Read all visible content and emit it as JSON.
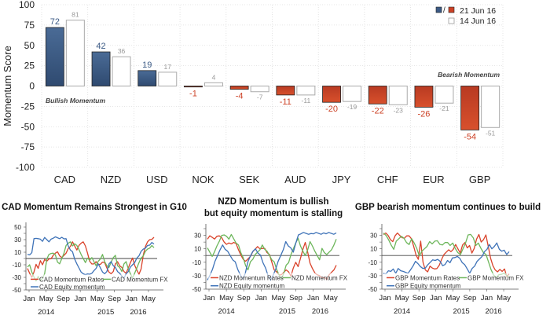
{
  "chart_data": [
    {
      "type": "bar",
      "ylabel": "Momentum Score",
      "ylim": [
        -100,
        100
      ],
      "yticks": [
        100,
        75,
        50,
        25,
        0,
        -25,
        -50,
        -75,
        -100
      ],
      "grid": true,
      "categories": [
        "CAD",
        "NZD",
        "USD",
        "NOK",
        "SEK",
        "AUD",
        "JPY",
        "CHF",
        "EUR",
        "GBP"
      ],
      "series": [
        {
          "name": "21 Jun 16",
          "values": [
            72,
            42,
            19,
            -1,
            -4,
            -11,
            -20,
            -22,
            -26,
            -54
          ],
          "positive_color": "#3b5a85",
          "negative_color": "#cc4125"
        },
        {
          "name": "14 Jun 16",
          "values": [
            81,
            36,
            17,
            4,
            -7,
            -11,
            -19,
            -23,
            -21,
            -51
          ],
          "color": "#ffffff",
          "stroke": "#aaaaaa"
        }
      ],
      "legend": {
        "position": "top-right",
        "entries": [
          "21 Jun 16",
          "14 Jun 16"
        ],
        "separator": "/"
      },
      "annotations": [
        "Bullish Momentum",
        "Bearish Momentum"
      ],
      "label_colors": {
        "positive": "#3b5a85",
        "negative": "#cc4125",
        "previous": "#999999"
      }
    },
    {
      "type": "line",
      "title": "CAD Momentum Remains Strongest in G10",
      "ylim": [
        -50,
        50
      ],
      "yticks": [
        50,
        30,
        10,
        -10,
        -30,
        -50
      ],
      "xticks": [
        "Jan",
        "May",
        "Sep",
        "Jan",
        "May",
        "Sep",
        "Jan",
        "May"
      ],
      "years": [
        "2014",
        "2015",
        "2016"
      ],
      "legend": [
        "CAD Momentum Rates",
        "CAD Momentum FX",
        "CAD Equity momentum"
      ],
      "series": [
        {
          "name": "CAD Momentum Rates",
          "color": "#d9432b",
          "values": [
            -15,
            -25,
            -30,
            -20,
            -10,
            -15,
            -5,
            -10,
            0,
            -5,
            0,
            -2,
            5,
            10,
            10,
            5,
            0,
            5,
            10,
            15,
            20,
            25,
            20,
            15,
            20,
            25,
            25,
            20,
            10,
            -5,
            -8,
            -10,
            -5,
            -8,
            -10,
            -5,
            -8,
            -15,
            -20,
            -25,
            -20,
            -10,
            -5,
            -10,
            -15,
            -20,
            -25,
            -15,
            -5,
            0,
            -10,
            -20,
            -25,
            -15,
            5,
            20,
            25,
            30,
            32,
            33
          ]
        },
        {
          "name": "CAD Momentum FX",
          "color": "#6db65b",
          "values": [
            -15,
            -10,
            -20,
            -30,
            -35,
            -30,
            -35,
            -30,
            -25,
            0,
            5,
            8,
            10,
            5,
            -5,
            -10,
            0,
            10,
            20,
            25,
            25,
            20,
            25,
            20,
            15,
            5,
            0,
            -5,
            0,
            -2,
            0,
            -5,
            -10,
            -5,
            0,
            5,
            -5,
            -10,
            -15,
            -5,
            0,
            5,
            -10,
            -15,
            -20,
            -10,
            -5,
            -15,
            -25,
            -30,
            -25,
            -15,
            -5,
            0,
            5,
            10,
            15,
            18,
            20,
            18
          ]
        },
        {
          "name": "CAD Equity momentum",
          "color": "#3f73b8",
          "values": [
            8,
            5,
            10,
            30,
            32,
            33,
            30,
            28,
            32,
            30,
            28,
            30,
            33,
            33,
            33,
            33,
            33,
            32,
            30,
            20,
            15,
            10,
            0,
            -10,
            -15,
            -20,
            -25,
            -25,
            -26,
            -25,
            -22,
            -20,
            -15,
            -10,
            -15,
            -20,
            -25,
            -20,
            -10,
            -5,
            -10,
            -15,
            -20,
            -25,
            -28,
            -30,
            -25,
            -20,
            -15,
            -10,
            -5,
            0,
            5,
            10,
            15,
            18,
            20,
            22,
            24,
            23
          ]
        }
      ]
    },
    {
      "type": "line",
      "title": "NZD Momentum is bullish but equity momentum is stalling",
      "ylim": [
        -50,
        40
      ],
      "yticks": [
        30,
        10,
        -10,
        -30,
        -50
      ],
      "xticks": [
        "Jan",
        "May",
        "Sep",
        "Jan",
        "May",
        "Sep",
        "Jan",
        "May"
      ],
      "years": [
        "2014",
        "2015",
        "2016"
      ],
      "legend": [
        "NZD Momentum Rates",
        "NZD Momentum FX",
        "NZD Equity momentum"
      ],
      "series": [
        {
          "name": "NZD Momentum Rates",
          "color": "#d9432b",
          "values": [
            25,
            28,
            27,
            26,
            28,
            30,
            25,
            20,
            18,
            18,
            18,
            18,
            18,
            10,
            0,
            -5,
            -10,
            -5,
            0,
            5,
            10,
            12,
            10,
            12,
            10,
            5,
            0,
            -10,
            -20,
            -25,
            -28,
            -30,
            -25,
            -20,
            -25,
            -30,
            -20,
            -10,
            -15,
            -5,
            10,
            18,
            5,
            -10,
            -20,
            -25,
            -30,
            -30,
            -32,
            -33,
            -35,
            -30,
            -25,
            -20,
            -15
          ]
        },
        {
          "name": "NZD Momentum FX",
          "color": "#6db65b",
          "values": [
            10,
            5,
            0,
            5,
            15,
            20,
            30,
            32,
            28,
            25,
            30,
            25,
            20,
            15,
            5,
            -5,
            -15,
            -20,
            -10,
            -5,
            0,
            5,
            10,
            15,
            10,
            5,
            0,
            -5,
            -10,
            -20,
            -30,
            -35,
            -25,
            -15,
            -10,
            0,
            10,
            20,
            25,
            15,
            5,
            0,
            10,
            20,
            15,
            5,
            0,
            -5,
            10,
            5,
            0,
            5,
            10,
            15,
            25
          ]
        },
        {
          "name": "NZD Equity momentum",
          "color": "#3f73b8",
          "values": [
            -35,
            -30,
            -20,
            -10,
            0,
            10,
            15,
            10,
            5,
            0,
            -5,
            -10,
            -20,
            -30,
            -35,
            -25,
            -10,
            0,
            5,
            10,
            5,
            0,
            -10,
            -20,
            -30,
            -35,
            -30,
            -20,
            -10,
            0,
            10,
            20,
            15,
            10,
            5,
            20,
            30,
            33,
            33,
            33,
            33,
            32,
            33,
            33,
            33,
            33,
            33,
            33,
            33,
            33,
            33,
            33
          ]
        }
      ]
    },
    {
      "type": "line",
      "title": "GBP bearish momentum continues to build",
      "ylim": [
        -50,
        40
      ],
      "yticks": [
        30,
        10,
        -10,
        -30,
        -50
      ],
      "xticks": [
        "Jan",
        "May",
        "Sep",
        "Jan",
        "May",
        "Sep",
        "Jan",
        "May"
      ],
      "years": [
        "2014",
        "2015",
        "2016"
      ],
      "legend": [
        "GBP Momentum Rates",
        "GBP Momentum FX",
        "GBP Equity momentum"
      ],
      "series": [
        {
          "name": "GBP Momentum Rates",
          "color": "#d9432b",
          "values": [
            32,
            32,
            30,
            25,
            20,
            30,
            32,
            30,
            28,
            25,
            30,
            28,
            25,
            15,
            0,
            -5,
            20,
            -10,
            -20,
            -25,
            -15,
            -20,
            -20,
            -18,
            -15,
            -5,
            0,
            5,
            10,
            5,
            10,
            15,
            10,
            5,
            15,
            20,
            10,
            15,
            5,
            10,
            25,
            30,
            20,
            25,
            30,
            15,
            -5,
            -15,
            -20,
            -25,
            -20,
            -25,
            -20,
            -30,
            -28
          ]
        },
        {
          "name": "GBP Momentum FX",
          "color": "#6db65b",
          "values": [
            32,
            30,
            25,
            15,
            10,
            20,
            25,
            30,
            25,
            20,
            15,
            25,
            20,
            10,
            0,
            5,
            10,
            15,
            20,
            18,
            20,
            22,
            18,
            15,
            20,
            18,
            15,
            20,
            10,
            5,
            0,
            10,
            20,
            30,
            32,
            25,
            15,
            20,
            10,
            5,
            0,
            -10,
            -20,
            -30,
            -32,
            -30,
            -28,
            -25,
            -30,
            -32
          ]
        },
        {
          "name": "GBP Equity momentum",
          "color": "#3f73b8",
          "values": [
            -25,
            -28,
            -22,
            -25,
            -20,
            -25,
            -20,
            -22,
            -25,
            -25,
            -25,
            -22,
            -15,
            -10,
            -12,
            -15,
            -20,
            -18,
            -15,
            -10,
            -5,
            -8,
            -5,
            -10,
            -15,
            -12,
            -8,
            -10,
            -5,
            -3,
            0,
            -5,
            -10,
            -15,
            -20,
            -25,
            -20,
            -15,
            -10,
            -5,
            0,
            5,
            10,
            15,
            10,
            15,
            18,
            10,
            5,
            8,
            3,
            5
          ]
        }
      ]
    }
  ]
}
